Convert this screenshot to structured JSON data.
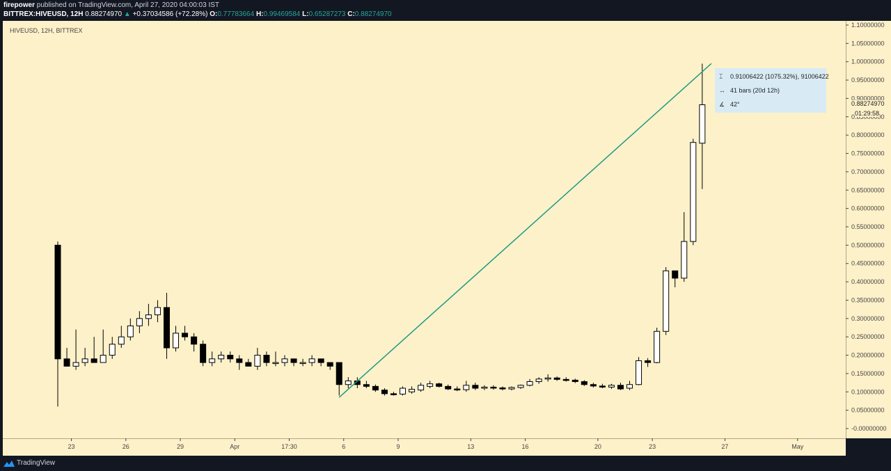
{
  "header": {
    "author": "firepower",
    "published_text": "published on TradingView.com, April 27, 2020 04:00:03 IST",
    "symbol": "BITTREX:HIVEUSD, 12H",
    "last": "0.88274970",
    "change": "+0.37034586 (+72.28%)",
    "open_label": "O:",
    "open": "0.77783664",
    "high_label": "H:",
    "high": "0.99469584",
    "low_label": "L:",
    "low": "0.65287273",
    "close_label": "C:",
    "close": "0.88274970"
  },
  "legend": {
    "symbol": "HIVEUSD, 12H, BITTREX"
  },
  "tooltip": {
    "price_range": "0.91006422 (1075.32%), 91006422",
    "bars": "41 bars (20d 12h)",
    "angle": "42°"
  },
  "price_label": "0.88274970",
  "countdown": "01:29:58",
  "footer": {
    "brand": "TradingView"
  },
  "colors": {
    "trendline": "#1e9a84",
    "candle_up": "#ffffff",
    "candle_down": "#000000",
    "background": "#fdf1c9"
  },
  "chart_data": {
    "type": "candlestick",
    "title": "HIVEUSD, 12H, BITTREX",
    "y_ticks": [
      "1.10000000",
      "1.05000000",
      "1.00000000",
      "0.95000000",
      "0.90000000",
      "0.85000000",
      "0.80000000",
      "0.75000000",
      "0.70000000",
      "0.65000000",
      "0.60000000",
      "0.55000000",
      "0.50000000",
      "0.45000000",
      "0.40000000",
      "0.35000000",
      "0.30000000",
      "0.25000000",
      "0.20000000",
      "0.15000000",
      "0.10000000",
      "0.05000000",
      "-0.00000000"
    ],
    "y_tick_values": [
      1.1,
      1.05,
      1.0,
      0.95,
      0.9,
      0.85,
      0.8,
      0.75,
      0.7,
      0.65,
      0.6,
      0.55,
      0.5,
      0.45,
      0.4,
      0.35,
      0.3,
      0.25,
      0.2,
      0.15,
      0.1,
      0.05,
      0.0
    ],
    "x_ticks": [
      "23",
      "26",
      "29",
      "Apr",
      "17:30",
      "6",
      "9",
      "13",
      "16",
      "20",
      "23",
      "27",
      "May"
    ],
    "x_tick_index": [
      1.5,
      7.5,
      13.5,
      19.5,
      25.5,
      31.5,
      37.5,
      45.5,
      51.5,
      59.5,
      65.5,
      73.5,
      81.5
    ],
    "ylim": [
      -0.01,
      1.11
    ],
    "candles": [
      {
        "o": 0.5,
        "h": 0.51,
        "l": 0.06,
        "c": 0.19
      },
      {
        "o": 0.19,
        "h": 0.22,
        "l": 0.17,
        "c": 0.17
      },
      {
        "o": 0.17,
        "h": 0.27,
        "l": 0.16,
        "c": 0.18
      },
      {
        "o": 0.18,
        "h": 0.22,
        "l": 0.17,
        "c": 0.19
      },
      {
        "o": 0.19,
        "h": 0.25,
        "l": 0.18,
        "c": 0.18
      },
      {
        "o": 0.18,
        "h": 0.27,
        "l": 0.18,
        "c": 0.2
      },
      {
        "o": 0.2,
        "h": 0.25,
        "l": 0.19,
        "c": 0.23
      },
      {
        "o": 0.23,
        "h": 0.28,
        "l": 0.22,
        "c": 0.25
      },
      {
        "o": 0.25,
        "h": 0.3,
        "l": 0.24,
        "c": 0.28
      },
      {
        "o": 0.28,
        "h": 0.32,
        "l": 0.26,
        "c": 0.3
      },
      {
        "o": 0.3,
        "h": 0.34,
        "l": 0.28,
        "c": 0.31
      },
      {
        "o": 0.31,
        "h": 0.35,
        "l": 0.29,
        "c": 0.33
      },
      {
        "o": 0.33,
        "h": 0.37,
        "l": 0.19,
        "c": 0.22
      },
      {
        "o": 0.22,
        "h": 0.28,
        "l": 0.21,
        "c": 0.26
      },
      {
        "o": 0.26,
        "h": 0.28,
        "l": 0.24,
        "c": 0.25
      },
      {
        "o": 0.25,
        "h": 0.26,
        "l": 0.21,
        "c": 0.23
      },
      {
        "o": 0.23,
        "h": 0.24,
        "l": 0.17,
        "c": 0.18
      },
      {
        "o": 0.18,
        "h": 0.21,
        "l": 0.17,
        "c": 0.19
      },
      {
        "o": 0.19,
        "h": 0.21,
        "l": 0.18,
        "c": 0.2
      },
      {
        "o": 0.2,
        "h": 0.21,
        "l": 0.18,
        "c": 0.19
      },
      {
        "o": 0.19,
        "h": 0.2,
        "l": 0.16,
        "c": 0.18
      },
      {
        "o": 0.18,
        "h": 0.19,
        "l": 0.17,
        "c": 0.17
      },
      {
        "o": 0.17,
        "h": 0.22,
        "l": 0.16,
        "c": 0.2
      },
      {
        "o": 0.2,
        "h": 0.21,
        "l": 0.17,
        "c": 0.18
      },
      {
        "o": 0.18,
        "h": 0.21,
        "l": 0.17,
        "c": 0.18
      },
      {
        "o": 0.18,
        "h": 0.2,
        "l": 0.17,
        "c": 0.19
      },
      {
        "o": 0.19,
        "h": 0.19,
        "l": 0.17,
        "c": 0.18
      },
      {
        "o": 0.18,
        "h": 0.19,
        "l": 0.17,
        "c": 0.18
      },
      {
        "o": 0.18,
        "h": 0.2,
        "l": 0.17,
        "c": 0.19
      },
      {
        "o": 0.19,
        "h": 0.19,
        "l": 0.17,
        "c": 0.18
      },
      {
        "o": 0.18,
        "h": 0.18,
        "l": 0.16,
        "c": 0.17
      },
      {
        "o": 0.18,
        "h": 0.18,
        "l": 0.09,
        "c": 0.12
      },
      {
        "o": 0.12,
        "h": 0.14,
        "l": 0.11,
        "c": 0.13
      },
      {
        "o": 0.13,
        "h": 0.14,
        "l": 0.11,
        "c": 0.12
      },
      {
        "o": 0.12,
        "h": 0.13,
        "l": 0.11,
        "c": 0.115
      },
      {
        "o": 0.115,
        "h": 0.12,
        "l": 0.1,
        "c": 0.105
      },
      {
        "o": 0.105,
        "h": 0.11,
        "l": 0.09,
        "c": 0.095
      },
      {
        "o": 0.095,
        "h": 0.1,
        "l": 0.09,
        "c": 0.094
      },
      {
        "o": 0.094,
        "h": 0.115,
        "l": 0.09,
        "c": 0.11
      },
      {
        "o": 0.1,
        "h": 0.115,
        "l": 0.095,
        "c": 0.107
      },
      {
        "o": 0.105,
        "h": 0.125,
        "l": 0.1,
        "c": 0.118
      },
      {
        "o": 0.115,
        "h": 0.13,
        "l": 0.11,
        "c": 0.122
      },
      {
        "o": 0.122,
        "h": 0.125,
        "l": 0.112,
        "c": 0.115
      },
      {
        "o": 0.115,
        "h": 0.12,
        "l": 0.105,
        "c": 0.108
      },
      {
        "o": 0.108,
        "h": 0.115,
        "l": 0.102,
        "c": 0.107
      },
      {
        "o": 0.106,
        "h": 0.13,
        "l": 0.1,
        "c": 0.118
      },
      {
        "o": 0.118,
        "h": 0.125,
        "l": 0.105,
        "c": 0.11
      },
      {
        "o": 0.11,
        "h": 0.118,
        "l": 0.105,
        "c": 0.113
      },
      {
        "o": 0.113,
        "h": 0.118,
        "l": 0.106,
        "c": 0.111
      },
      {
        "o": 0.111,
        "h": 0.115,
        "l": 0.104,
        "c": 0.108
      },
      {
        "o": 0.108,
        "h": 0.115,
        "l": 0.104,
        "c": 0.112
      },
      {
        "o": 0.112,
        "h": 0.12,
        "l": 0.108,
        "c": 0.118
      },
      {
        "o": 0.118,
        "h": 0.135,
        "l": 0.115,
        "c": 0.128
      },
      {
        "o": 0.128,
        "h": 0.14,
        "l": 0.122,
        "c": 0.135
      },
      {
        "o": 0.135,
        "h": 0.148,
        "l": 0.128,
        "c": 0.138
      },
      {
        "o": 0.138,
        "h": 0.142,
        "l": 0.13,
        "c": 0.134
      },
      {
        "o": 0.134,
        "h": 0.14,
        "l": 0.128,
        "c": 0.132
      },
      {
        "o": 0.132,
        "h": 0.136,
        "l": 0.124,
        "c": 0.128
      },
      {
        "o": 0.128,
        "h": 0.132,
        "l": 0.116,
        "c": 0.12
      },
      {
        "o": 0.12,
        "h": 0.125,
        "l": 0.112,
        "c": 0.116
      },
      {
        "o": 0.116,
        "h": 0.122,
        "l": 0.11,
        "c": 0.113
      },
      {
        "o": 0.113,
        "h": 0.122,
        "l": 0.108,
        "c": 0.118
      },
      {
        "o": 0.118,
        "h": 0.125,
        "l": 0.105,
        "c": 0.108
      },
      {
        "o": 0.11,
        "h": 0.13,
        "l": 0.105,
        "c": 0.12
      },
      {
        "o": 0.12,
        "h": 0.195,
        "l": 0.118,
        "c": 0.185
      },
      {
        "o": 0.185,
        "h": 0.192,
        "l": 0.168,
        "c": 0.18
      },
      {
        "o": 0.18,
        "h": 0.275,
        "l": 0.178,
        "c": 0.265
      },
      {
        "o": 0.265,
        "h": 0.44,
        "l": 0.255,
        "c": 0.43
      },
      {
        "o": 0.43,
        "h": 0.43,
        "l": 0.385,
        "c": 0.41
      },
      {
        "o": 0.41,
        "h": 0.59,
        "l": 0.4,
        "c": 0.51
      },
      {
        "o": 0.51,
        "h": 0.79,
        "l": 0.5,
        "c": 0.78
      },
      {
        "o": 0.77783664,
        "h": 0.99469584,
        "l": 0.65287273,
        "c": 0.8827497
      }
    ],
    "trendline": {
      "from_index": 31,
      "from_price": 0.085,
      "to_index": 72,
      "to_price": 0.995
    }
  }
}
